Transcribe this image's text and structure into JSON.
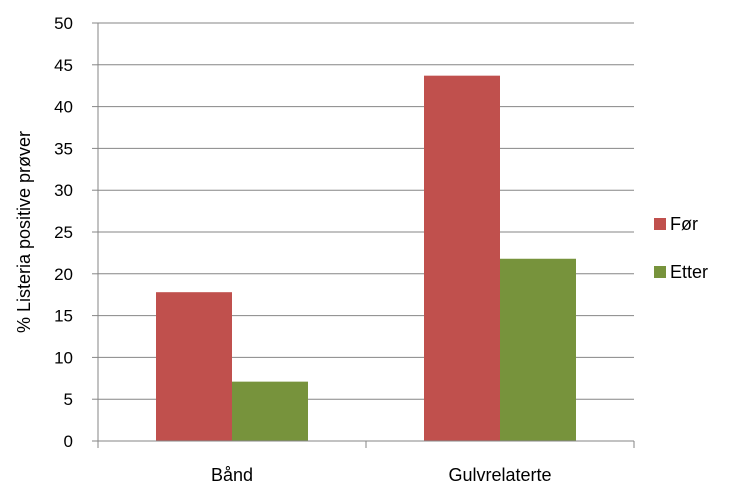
{
  "chart_data": {
    "type": "bar",
    "title": "",
    "xlabel": "",
    "ylabel": "% Listeria positive prøver",
    "categories": [
      "Bånd",
      "Gulvrelaterte"
    ],
    "series": [
      {
        "name": "Før",
        "color": "#c0504d",
        "values": [
          17.8,
          43.7
        ]
      },
      {
        "name": "Etter",
        "color": "#77933c",
        "values": [
          7.1,
          21.8
        ]
      }
    ],
    "ylim": [
      0,
      50
    ],
    "yticks": [
      0,
      5,
      10,
      15,
      20,
      25,
      30,
      35,
      40,
      45,
      50
    ],
    "grid": true,
    "legend_position": "right"
  }
}
